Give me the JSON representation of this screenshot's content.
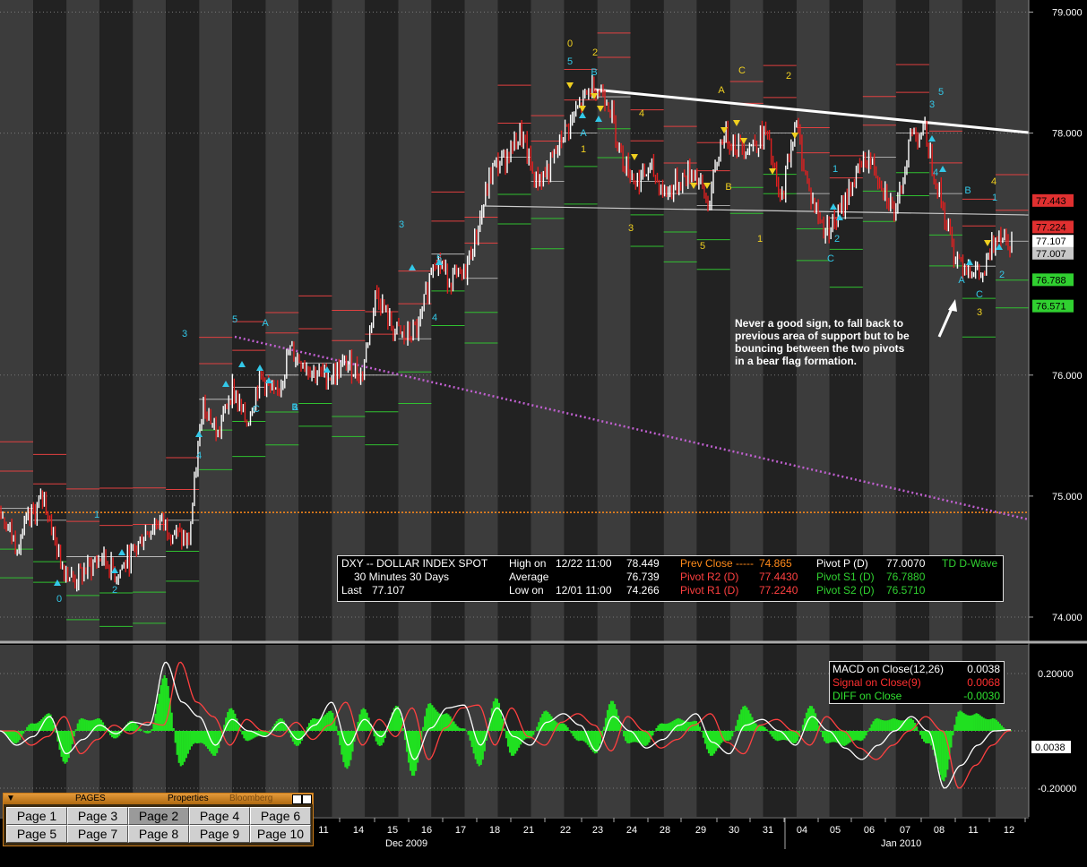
{
  "chart_data": {
    "type": "candlestick",
    "instrument": "DXY -- DOLLAR INDEX SPOT",
    "x_tick_labels": [
      "11",
      "14",
      "15",
      "16",
      "17",
      "18",
      "21",
      "22",
      "23",
      "24",
      "28",
      "29",
      "30",
      "31",
      "04",
      "05",
      "06",
      "07",
      "08",
      "11",
      "12"
    ],
    "x_group_labels": [
      "Dec 2009",
      "Jan 2010"
    ],
    "price_axis": {
      "ylim": [
        73.8,
        79.1
      ],
      "ticks": [
        "79.000",
        "78.000",
        "76.000",
        "75.000",
        "74.000"
      ]
    },
    "macd_axis": {
      "ylim": [
        -0.3,
        0.3
      ],
      "ticks": [
        "0.20000",
        "-0.20000"
      ]
    },
    "price_path_y": [
      74.9,
      74.6,
      74.8,
      75.0,
      74.5,
      74.3,
      74.4,
      74.5,
      74.35,
      74.5,
      74.7,
      74.8,
      74.7,
      74.6,
      75.8,
      75.5,
      75.9,
      75.6,
      76.0,
      75.8,
      76.2,
      76.1,
      76.0,
      76.0,
      76.1,
      76.0,
      76.7,
      76.4,
      76.3,
      76.4,
      77.0,
      76.8,
      76.8,
      77.2,
      77.7,
      77.8,
      78.0,
      77.6,
      77.7,
      78.0,
      78.2,
      78.4,
      78.3,
      77.8,
      77.6,
      77.7,
      77.5,
      77.6,
      77.7,
      77.4,
      78.0,
      77.9,
      77.9,
      78.0,
      77.4,
      78.1,
      77.5,
      77.2,
      77.3,
      77.6,
      77.8,
      77.6,
      77.3,
      78.0,
      78.0,
      77.5,
      77.0,
      76.9,
      76.8,
      77.2,
      77.107
    ],
    "macd_path": [
      0.0,
      -0.05,
      -0.02,
      0.05,
      -0.08,
      -0.03,
      0.02,
      -0.01,
      0.03,
      0.02,
      0.24,
      0.1,
      0.05,
      -0.05,
      0.04,
      0.0,
      -0.02,
      0.03,
      -0.03,
      0.02,
      0.1,
      -0.05,
      0.04,
      -0.02,
      0.08,
      -0.1,
      0.01,
      0.08,
      0.09,
      -0.05,
      0.08,
      -0.02,
      -0.05,
      0.03,
      0.06,
      0.02,
      -0.07,
      0.05,
      0.0,
      -0.06,
      -0.03,
      0.02,
      0.06,
      -0.04,
      -0.08,
      0.02,
      0.04,
      0.0,
      -0.05,
      0.05,
      0.0,
      -0.06,
      -0.1,
      -0.05,
      0.0,
      0.05,
      0.0,
      -0.2,
      -0.12,
      -0.05,
      0.0,
      0.0038
    ]
  },
  "right_price_labels": [
    {
      "text": "77.443",
      "color": "#e03030"
    },
    {
      "text": "77.224",
      "color": "#e03030"
    },
    {
      "text": "77.107",
      "color": "#ffffff"
    },
    {
      "text": "77.007",
      "color": "#b0b0b0"
    },
    {
      "text": "76.788",
      "color": "#30d030"
    },
    {
      "text": "76.571",
      "color": "#30d030"
    }
  ],
  "macd_price_label": "0.0038",
  "wave_labels": [
    {
      "t": "0",
      "c": "#33c8e8"
    },
    {
      "t": "1",
      "c": "#33c8e8"
    },
    {
      "t": "2",
      "c": "#33c8e8"
    },
    {
      "t": "3",
      "c": "#33c8e8"
    },
    {
      "t": "4",
      "c": "#33c8e8"
    },
    {
      "t": "5",
      "c": "#33c8e8"
    },
    {
      "t": "A",
      "c": "#33c8e8"
    },
    {
      "t": "B",
      "c": "#33c8e8"
    },
    {
      "t": "C",
      "c": "#33c8e8"
    },
    {
      "t": "1",
      "c": "#33c8e8"
    },
    {
      "t": "2",
      "c": "#33c8e8"
    },
    {
      "t": "3",
      "c": "#33c8e8"
    },
    {
      "t": "4",
      "c": "#33c8e8"
    },
    {
      "t": "5",
      "c": "#33c8e8"
    },
    {
      "t": "0",
      "c": "#f0d020"
    },
    {
      "t": "5",
      "c": "#33c8e8"
    },
    {
      "t": "2",
      "c": "#f0d020"
    },
    {
      "t": "B",
      "c": "#33c8e8"
    },
    {
      "t": "A",
      "c": "#33c8e8"
    },
    {
      "t": "1",
      "c": "#f0d020"
    },
    {
      "t": "4",
      "c": "#f0d020"
    },
    {
      "t": "3",
      "c": "#f0d020"
    },
    {
      "t": "5",
      "c": "#f0d020"
    },
    {
      "t": "A",
      "c": "#f0d020"
    },
    {
      "t": "C",
      "c": "#f0d020"
    },
    {
      "t": "2",
      "c": "#f0d020"
    },
    {
      "t": "B",
      "c": "#f0d020"
    },
    {
      "t": "1",
      "c": "#f0d020"
    },
    {
      "t": "5",
      "c": "#33c8e8"
    },
    {
      "t": "3",
      "c": "#33c8e8"
    },
    {
      "t": "1",
      "c": "#33c8e8"
    },
    {
      "t": "2",
      "c": "#33c8e8"
    },
    {
      "t": "C",
      "c": "#33c8e8"
    },
    {
      "t": "4",
      "c": "#33c8e8"
    },
    {
      "t": "B",
      "c": "#33c8e8"
    },
    {
      "t": "4",
      "c": "#f0d020"
    },
    {
      "t": "1",
      "c": "#33c8e8"
    },
    {
      "t": "A",
      "c": "#33c8e8"
    },
    {
      "t": "C",
      "c": "#33c8e8"
    },
    {
      "t": "2",
      "c": "#33c8e8"
    },
    {
      "t": "3",
      "c": "#f0d020"
    }
  ],
  "annotation": "Never a good sign, to fall back to\nprevious area of support but to be\nbouncing between the two pivots\nin a bear flag formation.",
  "info": {
    "title": "DXY -- DOLLAR INDEX SPOT",
    "interval": "30 Minutes  30 Days",
    "last_label": "Last",
    "last_value": "77.107",
    "high_label": "High on",
    "high_date": "12/22 11:00",
    "high_value": "78.449",
    "avg_label": "Average",
    "avg_value": "76.739",
    "low_label": "Low on",
    "low_date": "12/01 11:00",
    "low_value": "74.266",
    "prev_close_label": "Prev Close -----",
    "prev_close_value": "74.865",
    "r2_label": "Pivot R2 (D)",
    "r2_value": "77.4430",
    "r1_label": "Pivot R1 (D)",
    "r1_value": "77.2240",
    "p_label": "Pivot P (D)",
    "p_value": "77.0070",
    "s1_label": "Pivot S1 (D)",
    "s1_value": "76.7880",
    "s2_label": "Pivot S2 (D)",
    "s2_value": "76.5710",
    "study": "TD D-Wave"
  },
  "macd": {
    "label": "MACD on Close(12,26)",
    "value": "0.0038",
    "signal_label": "Signal on Close(9)",
    "signal_value": "0.0068",
    "diff_label": "DIFF on Close",
    "diff_value": "-0.0030"
  },
  "pages_panel": {
    "title": "PAGES",
    "properties": "Properties",
    "bloomberg": "Bloomberg",
    "buttons": [
      "Page 1",
      "Page 3",
      "Page 2",
      "Page 4",
      "Page 6",
      "Page 5",
      "Page 7",
      "Page 8",
      "Page 9",
      "Page 10"
    ],
    "selected": "Page 2"
  },
  "colors": {
    "background": "#000000",
    "band_light": "#3c3c3c",
    "band_dark": "#222222",
    "up": "#ffffff",
    "down": "#e02020",
    "pivot_resistance": "#e04040",
    "pivot_support": "#30c030",
    "trendline": "#ffffff",
    "dotted_trend": "#c060d0",
    "prev_close_line": "#ff8a1a",
    "macd_line": "#ffffff",
    "signal_line": "#ff4040",
    "diff_hist": "#20e020"
  }
}
